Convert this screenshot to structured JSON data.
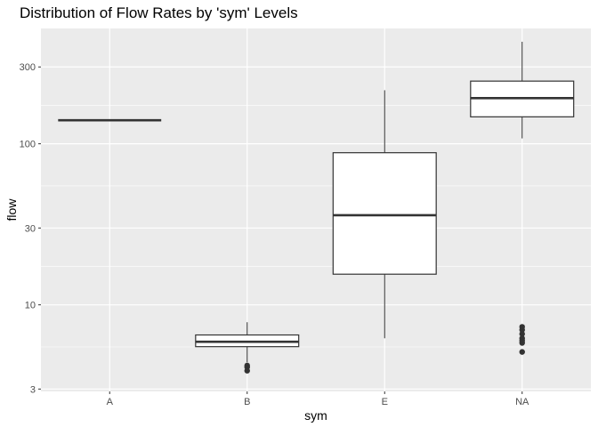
{
  "chart_data": {
    "type": "boxplot",
    "title": "Distribution of Flow Rates by 'sym' Levels",
    "xlabel": "sym",
    "ylabel": "flow",
    "y_scale": "log10",
    "ylim": [
      2.9,
      520
    ],
    "y_ticks": [
      3,
      10,
      30,
      100,
      300
    ],
    "y_tick_labels": [
      "3",
      "10",
      "30",
      "100",
      "300"
    ],
    "grid": true,
    "colors": {
      "panel_background": "#ebebeb",
      "grid_line": "#ffffff",
      "box_fill": "#ffffff",
      "box_stroke": "#333333",
      "outlier": "#333333"
    },
    "categories": [
      "A",
      "B",
      "E",
      "NA"
    ],
    "boxes": [
      {
        "category": "A",
        "lower_whisker": 140,
        "q1": 140,
        "median": 140,
        "q3": 140,
        "upper_whisker": 140,
        "outliers": []
      },
      {
        "category": "B",
        "lower_whisker": 4.4,
        "q1": 5.5,
        "median": 5.9,
        "q3": 6.5,
        "upper_whisker": 7.8,
        "outliers": [
          4.2,
          4.1,
          3.9
        ]
      },
      {
        "category": "E",
        "lower_whisker": 6.2,
        "q1": 15.5,
        "median": 36,
        "q3": 88,
        "upper_whisker": 215,
        "outliers": []
      },
      {
        "category": "NA",
        "lower_whisker": 108,
        "q1": 147,
        "median": 192,
        "q3": 245,
        "upper_whisker": 430,
        "outliers": [
          7.3,
          7.0,
          6.6,
          6.2,
          6.0,
          5.8,
          5.1
        ]
      }
    ]
  }
}
